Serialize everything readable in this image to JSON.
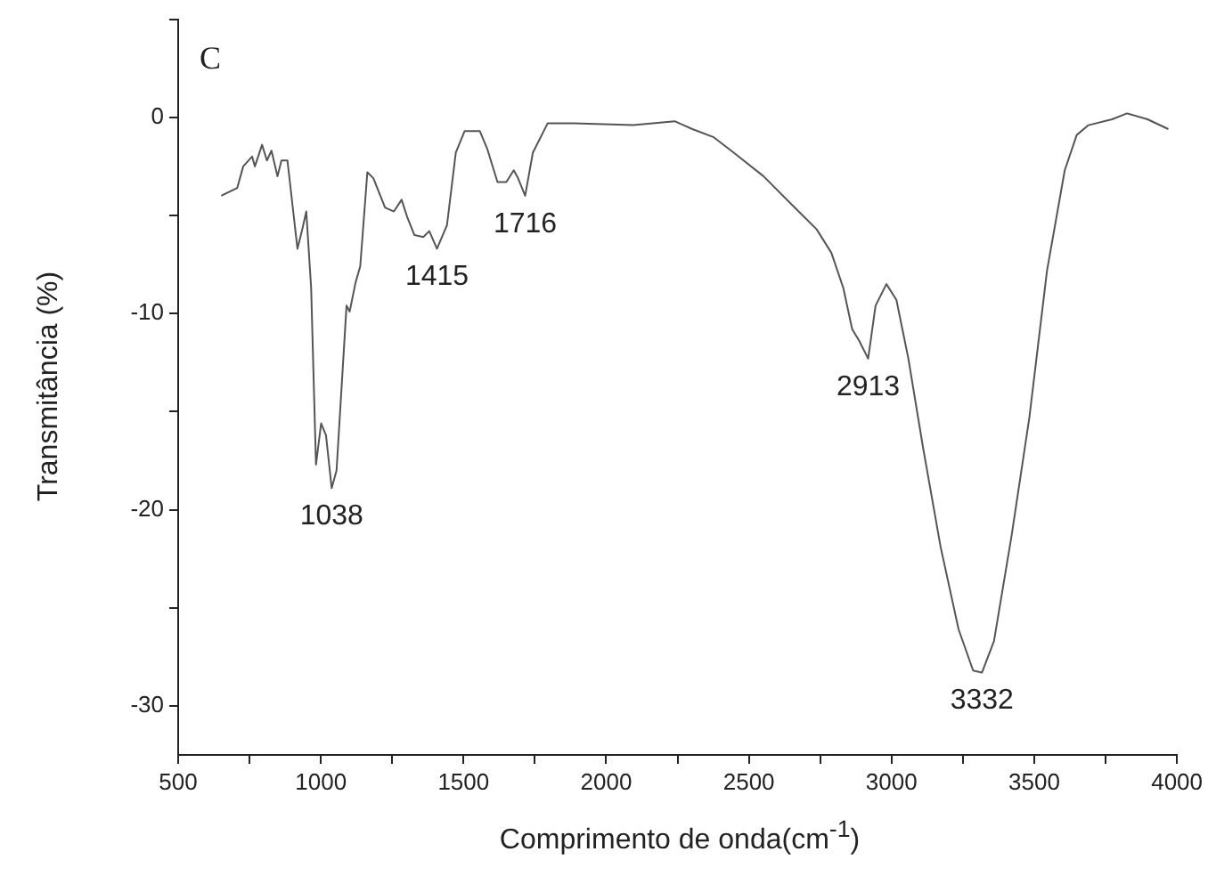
{
  "chart_data": {
    "type": "line",
    "xlabel": "Comprimento de onda(cm$^{-1}$)",
    "ylabel": "Transmitância (%)",
    "xlim": [
      500,
      4000
    ],
    "ylim": [
      -32.5,
      5
    ],
    "xticks": [
      500,
      {
        "value": 750,
        "label": null
      },
      1000,
      {
        "value": 1250,
        "label": null
      },
      1500,
      {
        "value": 1750,
        "label": null
      },
      2000,
      {
        "value": 2250,
        "label": null
      },
      2500,
      {
        "value": 2750,
        "label": null
      },
      3000,
      {
        "value": 3250,
        "label": null
      },
      3500,
      {
        "value": 3750,
        "label": null
      },
      4000
    ],
    "yticks": [
      -30,
      {
        "value": -25,
        "label": null
      },
      -20,
      {
        "value": -15,
        "label": null
      },
      -10,
      {
        "value": -5,
        "label": null
      },
      0,
      {
        "value": 5,
        "label": null
      }
    ],
    "grid": false,
    "legend": false,
    "marker": "none",
    "line_style": "solid",
    "annotations": [
      "C",
      {
        "text": "1038",
        "x": 1038,
        "y": -18.9
      },
      {
        "text": "1415",
        "x": 1407,
        "y": -6.7
      },
      {
        "text": "1716",
        "x": 1716,
        "y": -4.0
      },
      {
        "text": "2913",
        "x": 2918,
        "y": -12.3
      },
      {
        "text": "3332",
        "x": 3317,
        "y": -28.3
      }
    ],
    "series": [
      {
        "color": "#555555",
        "x": [
          651,
          707,
          728,
          759,
          769,
          794,
          811,
          827,
          848,
          862,
          883,
          918,
          935,
          949,
          966,
          983,
          1001,
          1018,
          1038,
          1055,
          1090,
          1101,
          1122,
          1138,
          1163,
          1184,
          1225,
          1256,
          1283,
          1303,
          1328,
          1359,
          1380,
          1407,
          1442,
          1473,
          1504,
          1557,
          1583,
          1619,
          1650,
          1676,
          1691,
          1716,
          1743,
          1795,
          1887,
          2095,
          2240,
          2302,
          2375,
          2447,
          2551,
          2654,
          2737,
          2789,
          2831,
          2862,
          2887,
          2918,
          2944,
          2982,
          3017,
          3059,
          3110,
          3172,
          3235,
          3286,
          3317,
          3359,
          3421,
          3483,
          3545,
          3607,
          3649,
          3690,
          3773,
          3825,
          3897,
          3970
        ],
        "values": [
          -4.0,
          -3.6,
          -2.5,
          -2.0,
          -2.5,
          -1.4,
          -2.2,
          -1.7,
          -3.0,
          -2.2,
          -2.2,
          -6.7,
          -5.7,
          -4.8,
          -8.7,
          -17.7,
          -15.6,
          -16.2,
          -18.9,
          -18.0,
          -9.6,
          -9.9,
          -8.4,
          -7.6,
          -2.8,
          -3.1,
          -4.6,
          -4.8,
          -4.2,
          -5.1,
          -6.0,
          -6.1,
          -5.8,
          -6.7,
          -5.5,
          -1.8,
          -0.7,
          -0.7,
          -1.6,
          -3.3,
          -3.3,
          -2.7,
          -3.1,
          -4.0,
          -1.8,
          -0.3,
          -0.3,
          -0.4,
          -0.2,
          -0.6,
          -1.0,
          -1.8,
          -3.0,
          -4.5,
          -5.7,
          -6.9,
          -8.7,
          -10.8,
          -11.4,
          -12.3,
          -9.6,
          -8.5,
          -9.3,
          -12.3,
          -16.8,
          -21.9,
          -26.1,
          -28.2,
          -28.3,
          -26.7,
          -21.3,
          -15.3,
          -7.8,
          -2.7,
          -0.9,
          -0.4,
          -0.1,
          0.2,
          -0.1,
          -0.6
        ]
      }
    ]
  }
}
